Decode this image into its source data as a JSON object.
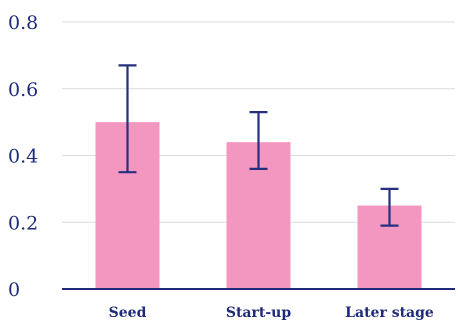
{
  "chart_data": {
    "type": "bar",
    "categories": [
      "Seed",
      "Start-up",
      "Later stage"
    ],
    "values": [
      0.5,
      0.44,
      0.25
    ],
    "error_bars": [
      {
        "low": 0.35,
        "high": 0.67
      },
      {
        "low": 0.36,
        "high": 0.53
      },
      {
        "low": 0.19,
        "high": 0.3
      }
    ],
    "ylim": [
      0,
      0.8
    ],
    "yticks": [
      "0",
      "0.2",
      "0.4",
      "0.6",
      "0.8"
    ],
    "ytick_values": [
      0,
      0.2,
      0.4,
      0.6,
      0.8
    ],
    "grid": true,
    "colors": {
      "bar": "#f497c0",
      "error_bar": "#24307f",
      "axis": "#1f2a7a",
      "text": "#1f2a7a",
      "grid": "#dcdcdc"
    }
  }
}
